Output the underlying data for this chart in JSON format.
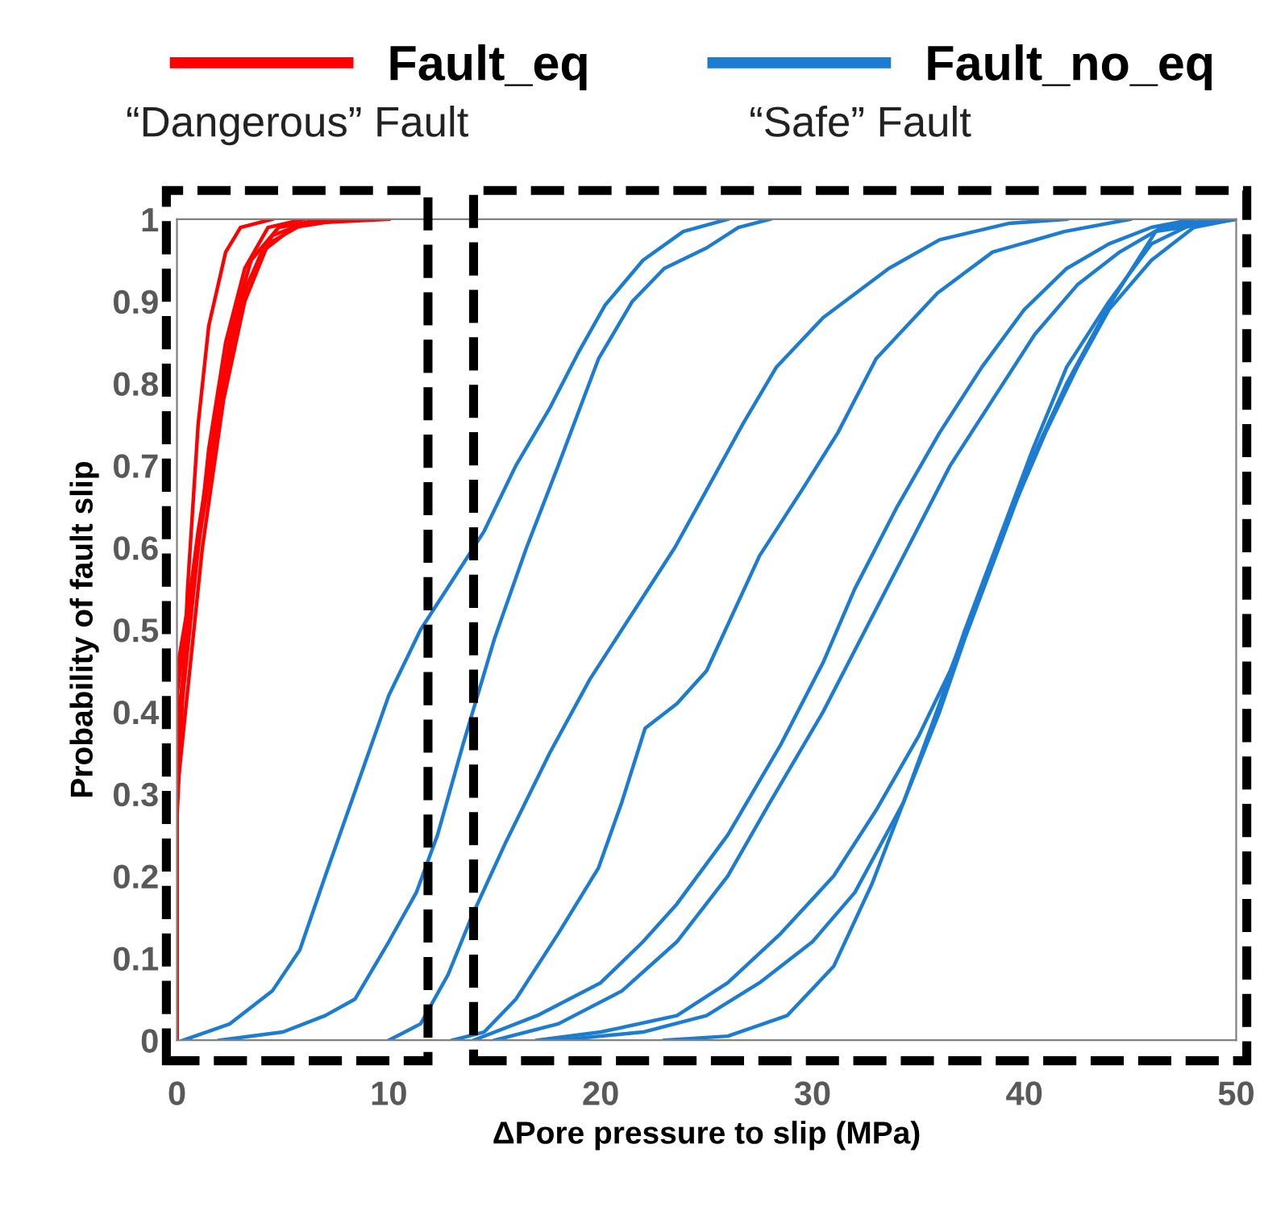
{
  "chart_data": {
    "type": "line",
    "xlabel": "ΔPore pressure to slip (MPa)",
    "ylabel": "Probability of fault slip",
    "xlim": [
      0,
      50
    ],
    "xticks": [
      0,
      10,
      20,
      30,
      40,
      50
    ],
    "ylim": [
      0,
      1
    ],
    "yticks": [
      0,
      0.1,
      0.2,
      0.3,
      0.4,
      0.5,
      0.6,
      0.7,
      0.8,
      0.9,
      1
    ],
    "grid": false,
    "legend": "top",
    "marker": "none",
    "line_style": "solid",
    "annotations": [
      "“Dangerous” Fault",
      "“Safe” Fault"
    ],
    "series": [
      {
        "name": "Fault_eq",
        "color": "#ff0000",
        "x": [
          0,
          0,
          0.5,
          1,
          1.5,
          2.3,
          3,
          4.5
        ],
        "values": [
          0,
          0.27,
          0.55,
          0.75,
          0.87,
          0.96,
          0.99,
          1
        ]
      },
      {
        "color": "#ff0000",
        "x": [
          0,
          0,
          0.8,
          1.5,
          2.3,
          3.2,
          4.3,
          6
        ],
        "values": [
          0,
          0.35,
          0.55,
          0.72,
          0.85,
          0.94,
          0.99,
          1
        ]
      },
      {
        "color": "#ff0000",
        "x": [
          0,
          0,
          1,
          1.8,
          2.6,
          3.5,
          4.8,
          7
        ],
        "values": [
          0,
          0.38,
          0.6,
          0.75,
          0.87,
          0.95,
          0.99,
          1
        ]
      },
      {
        "color": "#ff0000",
        "x": [
          0,
          0,
          1,
          2,
          3,
          4,
          5.5,
          8
        ],
        "values": [
          0,
          0.42,
          0.62,
          0.78,
          0.9,
          0.96,
          0.99,
          1
        ]
      },
      {
        "color": "#ff0000",
        "x": [
          0,
          0,
          1.2,
          2.2,
          3.2,
          4.3,
          6,
          10
        ],
        "values": [
          0,
          0.3,
          0.6,
          0.78,
          0.9,
          0.97,
          0.995,
          1
        ]
      },
      {
        "color": "#ff0000",
        "x": [
          0,
          0,
          1.3,
          2.4,
          3.3,
          4.5,
          6.5
        ],
        "values": [
          0,
          0.45,
          0.65,
          0.82,
          0.92,
          0.98,
          1
        ]
      },
      {
        "name": "Fault_no_eq",
        "color": "#1b7cd1",
        "x": [
          0.3,
          2.5,
          4.5,
          5.8,
          7,
          8.5,
          10,
          11.5,
          13,
          14.5,
          16,
          17.6,
          19,
          20.2,
          22,
          23.9,
          26
        ],
        "values": [
          0,
          0.02,
          0.06,
          0.11,
          0.2,
          0.31,
          0.42,
          0.5,
          0.56,
          0.62,
          0.7,
          0.77,
          0.84,
          0.895,
          0.95,
          0.985,
          1
        ]
      },
      {
        "color": "#1b7cd1",
        "x": [
          2,
          5,
          7,
          8.4,
          10,
          11.3,
          12.3,
          13.5,
          15,
          16.5,
          18,
          19.9,
          21.5,
          23,
          25,
          26.5,
          28
        ],
        "values": [
          0,
          0.01,
          0.03,
          0.05,
          0.12,
          0.18,
          0.25,
          0.36,
          0.49,
          0.6,
          0.7,
          0.83,
          0.9,
          0.94,
          0.965,
          0.99,
          1
        ]
      },
      {
        "color": "#1b7cd1",
        "x": [
          10,
          11.5,
          12.8,
          13.9,
          15.5,
          17.6,
          19.5,
          21.5,
          23.5,
          25,
          26.7,
          28.3,
          30.5,
          33.6,
          36,
          39.3,
          42
        ],
        "values": [
          0,
          0.02,
          0.08,
          0.15,
          0.24,
          0.35,
          0.44,
          0.52,
          0.6,
          0.67,
          0.75,
          0.82,
          0.88,
          0.94,
          0.975,
          0.995,
          1
        ]
      },
      {
        "color": "#1b7cd1",
        "x": [
          13,
          14.5,
          16,
          18,
          19.9,
          21,
          22.1,
          23.6,
          25,
          27.5,
          29.5,
          31.2,
          33,
          35.9,
          38.5,
          41.9,
          45
        ],
        "values": [
          0,
          0.01,
          0.05,
          0.13,
          0.21,
          0.29,
          0.38,
          0.41,
          0.45,
          0.59,
          0.67,
          0.74,
          0.83,
          0.91,
          0.96,
          0.985,
          1
        ]
      },
      {
        "color": "#1b7cd1",
        "x": [
          14,
          17,
          20,
          22,
          23.6,
          26,
          28.5,
          30.5,
          32,
          34,
          36,
          38,
          40,
          42,
          44,
          46,
          48
        ],
        "values": [
          0,
          0.03,
          0.07,
          0.12,
          0.166,
          0.25,
          0.36,
          0.46,
          0.55,
          0.65,
          0.74,
          0.82,
          0.89,
          0.94,
          0.97,
          0.99,
          1
        ]
      },
      {
        "color": "#1b7cd1",
        "x": [
          15,
          18,
          21,
          23.6,
          26,
          28,
          30.5,
          32.5,
          34.5,
          36.5,
          38.5,
          40.5,
          42.5,
          44.5,
          46.5,
          49
        ],
        "values": [
          0,
          0.02,
          0.06,
          0.12,
          0.2,
          0.29,
          0.4,
          0.5,
          0.6,
          0.7,
          0.78,
          0.86,
          0.92,
          0.96,
          0.99,
          1
        ]
      },
      {
        "color": "#1b7cd1",
        "x": [
          17,
          20,
          23.6,
          26,
          28.5,
          31,
          33,
          35,
          36.5,
          38,
          39.5,
          41,
          42.5,
          44,
          46,
          48,
          50
        ],
        "values": [
          0,
          0.01,
          0.03,
          0.07,
          0.13,
          0.2,
          0.28,
          0.37,
          0.45,
          0.55,
          0.65,
          0.74,
          0.82,
          0.89,
          0.95,
          0.99,
          1
        ]
      },
      {
        "color": "#1b7cd1",
        "x": [
          18,
          22,
          25,
          27.5,
          30,
          32,
          34.3,
          36,
          37.2,
          38.8,
          40.4,
          42,
          44,
          46.2,
          50
        ],
        "values": [
          0,
          0.01,
          0.03,
          0.07,
          0.12,
          0.18,
          0.29,
          0.4,
          0.49,
          0.6,
          0.71,
          0.8,
          0.895,
          0.985,
          1
        ]
      },
      {
        "color": "#1b7cd1",
        "x": [
          23,
          26,
          28.8,
          31,
          32.8,
          34.3,
          36,
          37.2,
          38.8,
          40.4,
          42,
          44,
          46,
          48,
          50
        ],
        "values": [
          0,
          0.005,
          0.03,
          0.09,
          0.19,
          0.29,
          0.41,
          0.5,
          0.61,
          0.72,
          0.82,
          0.9,
          0.97,
          0.995,
          1
        ]
      }
    ]
  }
}
